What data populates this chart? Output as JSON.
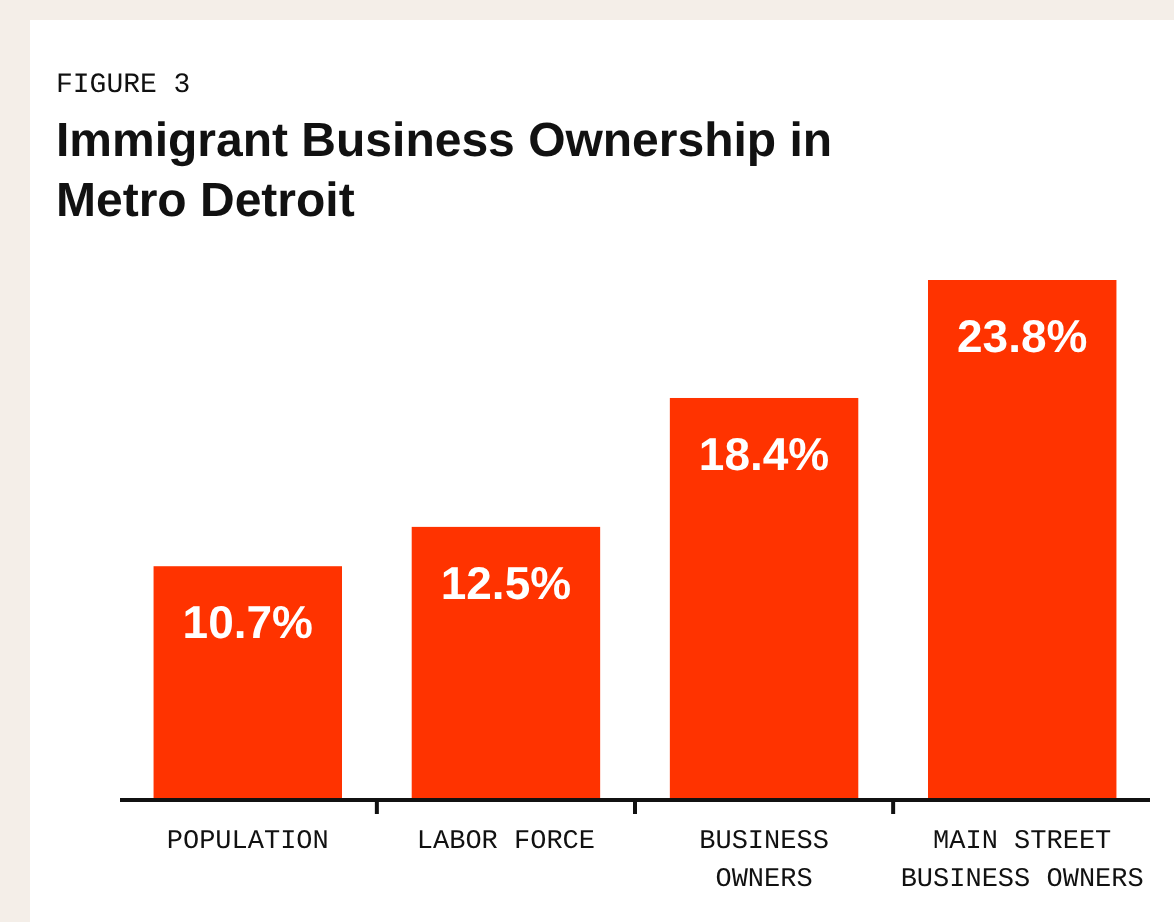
{
  "chart_data": {
    "type": "bar",
    "subtitle": "FIGURE 3",
    "title": "Immigrant Business Ownership in Metro Detroit",
    "categories": [
      "POPULATION",
      "LABOR FORCE",
      "BUSINESS\nOWNERS",
      "MAIN STREET\nBUSINESS OWNERS"
    ],
    "values": [
      10.7,
      12.5,
      18.4,
      23.8
    ],
    "color": "#ff3300",
    "value_labels": [
      "10.7%",
      "12.5%",
      "18.4%",
      "23.8%"
    ]
  }
}
